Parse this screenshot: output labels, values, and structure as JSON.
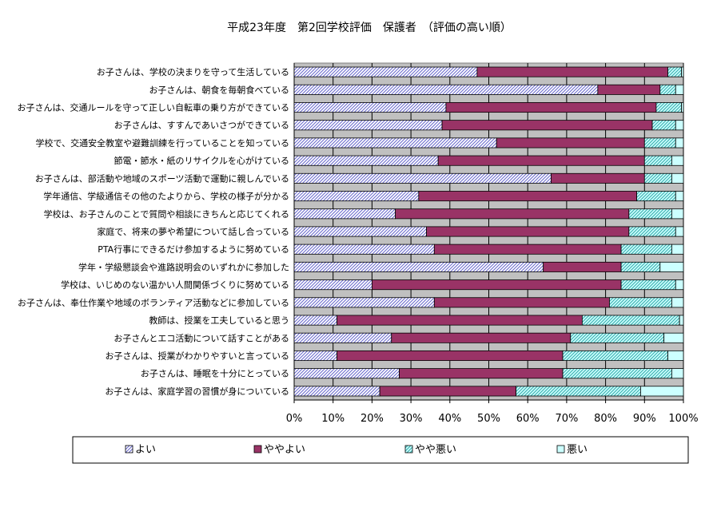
{
  "chart_data": {
    "type": "bar",
    "orientation": "horizontal",
    "stacked": "percent",
    "title": "平成23年度　第2回学校評価　保護者　（評価の高い順）",
    "xlabel": "",
    "ylabel": "",
    "xlim": [
      0,
      100
    ],
    "ticks": [
      "0%",
      "10%",
      "20%",
      "30%",
      "40%",
      "50%",
      "60%",
      "70%",
      "80%",
      "90%",
      "100%"
    ],
    "grid": true,
    "legend": "bottom",
    "categories": [
      "お子さんは、学校の決まりを守って生活している",
      "お子さんは、朝食を毎朝食べている",
      "お子さんは、交通ルールを守って正しい自転車の乗り方ができている",
      "お子さんは、すすんであいさつができている",
      "学校で、交通安全教室や避難訓練を行っていることを知っている",
      "節電・節水・紙のリサイクルを心がけている",
      "お子さんは、部活動や地域のスポーツ活動で運動に親しんでいる",
      "学年通信、学級通信その他のたよりから、学校の様子が分かる",
      "学校は、お子さんのことで質問や相談にきちんと応じてくれる",
      "家庭で、将来の夢や希望について話し合っている",
      "PTA行事にできるだけ参加するように努めている",
      "学年・学級懇談会や進路説明会のいずれかに参加した",
      "学校は、いじめのない温かい人間関係づくりに努めている",
      "お子さんは、奉仕作業や地域のボランティア活動などに参加している",
      "教師は、授業を工夫していると思う",
      "お子さんとエコ活動について話すことがある",
      "お子さんは、授業がわかりやすいと言っている",
      "お子さんは、睡眠を十分にとっている",
      "お子さんは、家庭学習の習慣が身についている"
    ],
    "series": [
      {
        "name": "よい",
        "color": "#9999ff",
        "pattern": "diagonal-hatch",
        "values": [
          47,
          78,
          39,
          38,
          52,
          37,
          66,
          32,
          26,
          34,
          36,
          64,
          20,
          36,
          11,
          25,
          11,
          27,
          22
        ]
      },
      {
        "name": "ややよい",
        "color": "#993366",
        "pattern": "solid",
        "values": [
          49,
          16,
          54,
          54,
          38,
          53,
          24,
          56,
          60,
          52,
          48,
          20,
          64,
          45,
          63,
          46,
          58,
          42,
          35
        ]
      },
      {
        "name": "やや悪い",
        "color": "#33cccc",
        "pattern": "diagonal-hatch",
        "values": [
          3.5,
          4,
          6.5,
          6,
          8,
          7,
          7,
          10,
          11,
          12,
          13,
          10,
          14,
          16,
          25,
          24,
          27,
          28,
          32
        ]
      },
      {
        "name": "悪い",
        "color": "#ccffff",
        "pattern": "solid",
        "values": [
          0.5,
          2,
          0.5,
          2,
          2,
          3,
          3,
          2,
          3,
          2,
          3,
          6,
          2,
          3,
          1,
          5,
          4,
          3,
          11
        ]
      }
    ]
  }
}
